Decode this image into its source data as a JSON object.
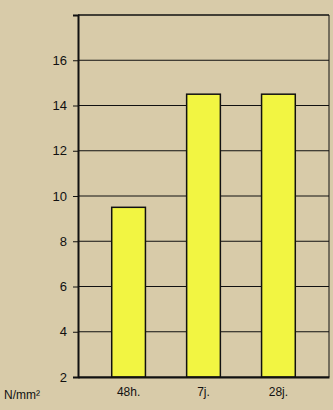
{
  "chart_data": {
    "type": "bar",
    "y_label": "N/mm²",
    "categories": [
      "48h.",
      "7j.",
      "28j."
    ],
    "values": [
      9.5,
      14.5,
      14.5
    ],
    "color": "#f2f542",
    "ylim": [
      2,
      18
    ],
    "yticks": [
      2,
      4,
      6,
      8,
      10,
      12,
      14,
      16
    ],
    "grid": true
  }
}
